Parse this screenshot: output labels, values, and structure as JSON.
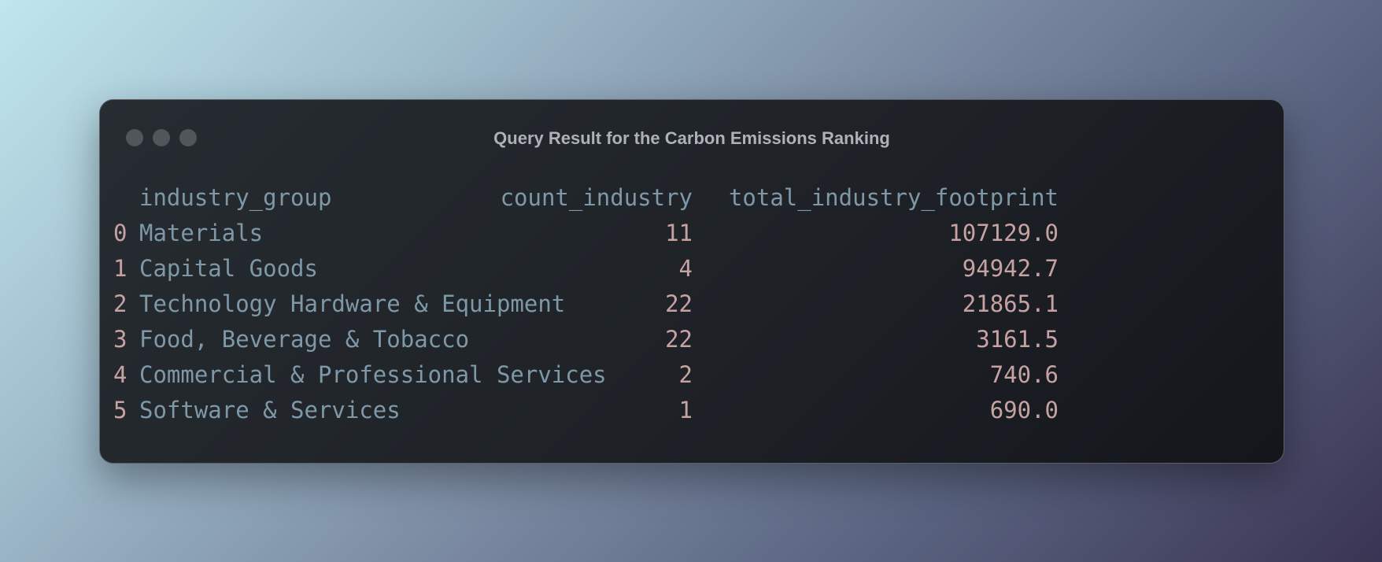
{
  "window": {
    "title": "Query Result for the Carbon Emissions Ranking"
  },
  "table": {
    "columns": [
      "industry_group",
      "count_industry",
      "total_industry_footprint"
    ],
    "rows": [
      {
        "index": 0,
        "industry_group": "Materials",
        "count_industry": 11,
        "total_industry_footprint": "107129.0"
      },
      {
        "index": 1,
        "industry_group": "Capital Goods",
        "count_industry": 4,
        "total_industry_footprint": "94942.7"
      },
      {
        "index": 2,
        "industry_group": "Technology Hardware & Equipment",
        "count_industry": 22,
        "total_industry_footprint": "21865.1"
      },
      {
        "index": 3,
        "industry_group": "Food, Beverage & Tobacco",
        "count_industry": 22,
        "total_industry_footprint": "3161.5"
      },
      {
        "index": 4,
        "industry_group": "Commercial & Professional Services",
        "count_industry": 2,
        "total_industry_footprint": "740.6"
      },
      {
        "index": 5,
        "industry_group": "Software & Services",
        "count_industry": 1,
        "total_industry_footprint": "690.0"
      }
    ]
  }
}
